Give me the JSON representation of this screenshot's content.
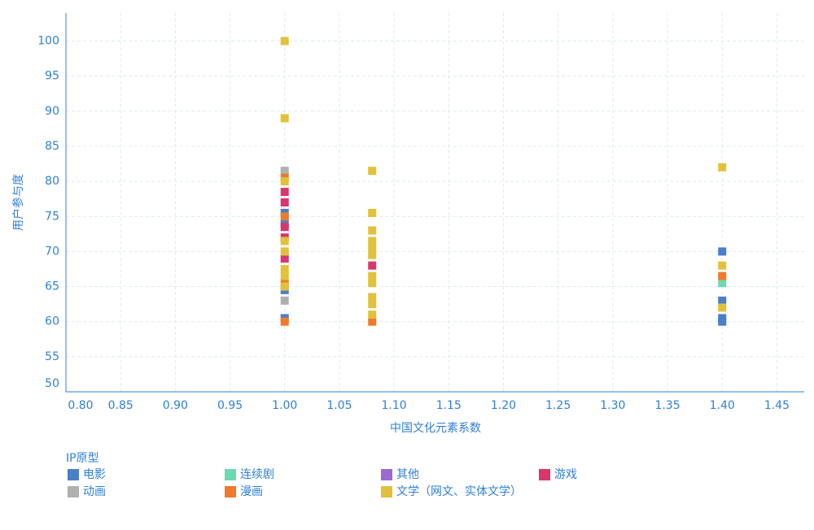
{
  "chart_data": {
    "type": "scatter",
    "x_label": "中国文化元素系数",
    "y_label": "用户参与度",
    "legend_title": "IP原型",
    "xlim": [
      0.8,
      1.475
    ],
    "xticks": [
      {
        "value": 0.8,
        "label": "0.80"
      },
      {
        "value": 0.85,
        "label": "0.85"
      },
      {
        "value": 0.9,
        "label": "0.90"
      },
      {
        "value": 0.95,
        "label": "0.95"
      },
      {
        "value": 1.0,
        "label": "1.00"
      },
      {
        "value": 1.05,
        "label": "1.05"
      },
      {
        "value": 1.1,
        "label": "1.10"
      },
      {
        "value": 1.15,
        "label": "1.15"
      },
      {
        "value": 1.2,
        "label": "1.20"
      },
      {
        "value": 1.25,
        "label": "1.25"
      },
      {
        "value": 1.3,
        "label": "1.30"
      },
      {
        "value": 1.35,
        "label": "1.35"
      },
      {
        "value": 1.4,
        "label": "1.40"
      },
      {
        "value": 1.45,
        "label": "1.45"
      }
    ],
    "ylim": [
      50,
      104
    ],
    "yticks": [
      50,
      55,
      60,
      65,
      70,
      75,
      80,
      85,
      90,
      95,
      100
    ],
    "grid": true,
    "series": [
      {
        "name": "电影",
        "color": "#4a7fc9",
        "x": [
          1.0,
          1.0,
          1.0,
          1.0,
          1.4,
          1.4,
          1.4,
          1.4
        ],
        "values": [
          75.5,
          74,
          64.5,
          60.5,
          70,
          63,
          60.5,
          60
        ]
      },
      {
        "name": "连续剧",
        "color": "#6dd9b0",
        "x": [
          1.4
        ],
        "values": [
          65.5
        ]
      },
      {
        "name": "其他",
        "color": "#9b6bd1",
        "x": [],
        "values": []
      },
      {
        "name": "游戏",
        "color": "#d9376b",
        "x": [
          1.0,
          1.0,
          1.0,
          1.0,
          1.0,
          1.08
        ],
        "values": [
          78.5,
          77,
          73.5,
          72,
          69,
          68
        ]
      },
      {
        "name": "动画",
        "color": "#b0b0b0",
        "x": [
          1.0,
          1.0
        ],
        "values": [
          81.5,
          63
        ]
      },
      {
        "name": "漫画",
        "color": "#f07a2a",
        "x": [
          1.0,
          1.0,
          1.0,
          1.0,
          1.08,
          1.4
        ],
        "values": [
          80.5,
          75,
          65.5,
          60,
          60,
          66.5
        ]
      },
      {
        "name": "文学（网文、实体文学）",
        "color": "#e2c13a",
        "x": [
          1.0,
          1.0,
          1.0,
          1.0,
          1.0,
          1.0,
          1.0,
          1.0,
          1.08,
          1.08,
          1.08,
          1.08,
          1.08,
          1.08,
          1.08,
          1.08,
          1.08,
          1.08,
          1.08,
          1.4,
          1.4,
          1.4
        ],
        "values": [
          100,
          89,
          80,
          71.5,
          70,
          67.5,
          66.5,
          65,
          81.5,
          75.5,
          73,
          71.5,
          70.5,
          69.5,
          66.5,
          65.5,
          63.5,
          62.5,
          61,
          82,
          68,
          62
        ]
      }
    ]
  }
}
